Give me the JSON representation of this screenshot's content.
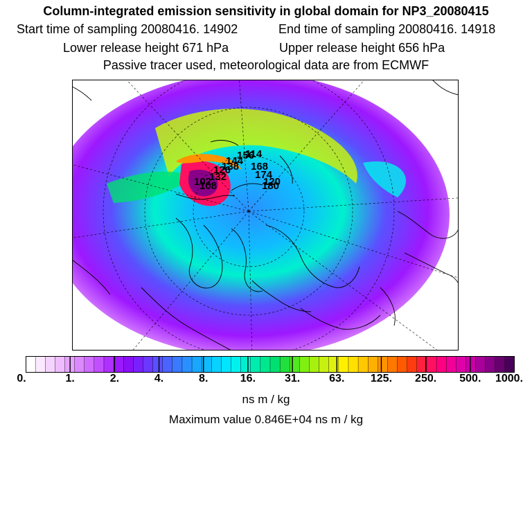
{
  "header": {
    "title": "Column-integrated emission sensitivity in global domain for NP3_20080415",
    "start_label": "Start time of sampling 20080416. 14902",
    "end_label": "End time of sampling 20080416. 14918",
    "lower_label": "Lower release height  671 hPa",
    "upper_label": "Upper release height  656 hPa",
    "note": "Passive tracer used, meteorological data are from ECMWF"
  },
  "map": {
    "trajectory_labels": [
      "114",
      "120",
      "132",
      "138",
      "144",
      "156",
      "168",
      "174",
      "180",
      "126",
      "102",
      "108"
    ]
  },
  "colorbar": {
    "tick_labels": [
      "0.",
      "1.",
      "2.",
      "4.",
      "8.",
      "16.",
      "31.",
      "63.",
      "125.",
      "250.",
      "500.",
      "1000."
    ],
    "colors": [
      "#ffffff",
      "#fbe9ff",
      "#f5d3ff",
      "#efbdff",
      "#e6a3ff",
      "#dc88ff",
      "#d06cff",
      "#c24fff",
      "#b030ff",
      "#9d18ff",
      "#8a10f8",
      "#7a20ff",
      "#6a38ff",
      "#5a50ff",
      "#4a64ff",
      "#3a7aff",
      "#2a90ff",
      "#1aa6ff",
      "#10bcff",
      "#08d2ff",
      "#00e6ff",
      "#00f2ee",
      "#00f0cf",
      "#00ecaf",
      "#00e88f",
      "#00e070",
      "#20e040",
      "#50e820",
      "#80f010",
      "#a8f010",
      "#c8f010",
      "#e0f010",
      "#fff000",
      "#ffe000",
      "#ffc800",
      "#ffb000",
      "#ff9400",
      "#ff7800",
      "#ff5a00",
      "#ff3c10",
      "#ff2040",
      "#ff1060",
      "#ff0080",
      "#f00098",
      "#e000a8",
      "#c800a8",
      "#a8009a",
      "#880088",
      "#68006e",
      "#480058"
    ],
    "units": "ns m / kg",
    "max_value_label": "Maximum value  0.846E+04 ns m / kg"
  }
}
